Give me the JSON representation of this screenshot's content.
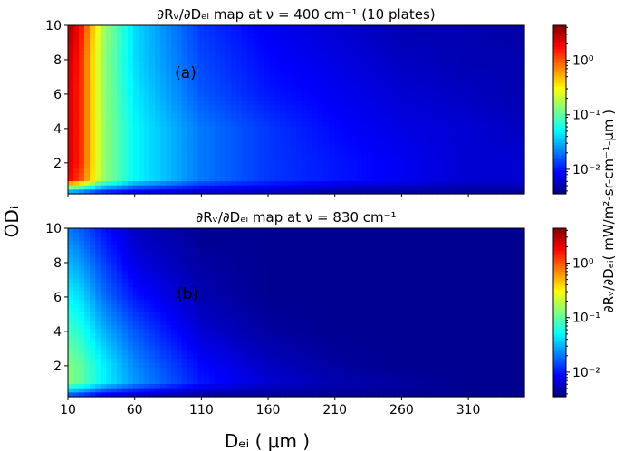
{
  "chart_data": {
    "type": "heatmap",
    "colormap": "jet",
    "color_scale": "log",
    "clim_log10": [
      -2.45,
      0.64
    ],
    "x": [
      10,
      20,
      35,
      60,
      110,
      160,
      210,
      260,
      310,
      350
    ],
    "y": [
      0.2,
      1,
      2,
      4,
      6,
      8,
      10
    ],
    "xlim": [
      10,
      352
    ],
    "ylim": [
      0.2,
      10
    ],
    "xticks": [
      "10",
      "60",
      "110",
      "160",
      "210",
      "260",
      "310"
    ],
    "xtick_values": [
      10,
      60,
      110,
      160,
      210,
      260,
      310
    ],
    "yticks": [
      "2",
      "4",
      "6",
      "8",
      "10"
    ],
    "ytick_values": [
      2,
      4,
      6,
      8,
      10
    ],
    "xlabel": "Dₑᵢ ( μm )",
    "ylabel": "ODᵢ",
    "colorbar": {
      "label": "∂Rᵥ/∂Dₑᵢ( mW/m²-sr-cm⁻¹-μm )",
      "ticks": [
        "10⁰",
        "10⁻¹",
        "10⁻²"
      ],
      "tick_log10": [
        0,
        -1,
        -2
      ]
    },
    "panels": [
      {
        "title": "∂Rᵥ/∂Dₑᵢ map at ν = 400 cm⁻¹ (10 plates)",
        "annotation": "(a)",
        "log10_values": [
          [
            -1.8,
            -1.9,
            -2.1,
            -2.2,
            -2.3,
            -2.3,
            -2.4,
            -2.4,
            -2.4,
            -2.4
          ],
          [
            0.3,
            0.0,
            -0.8,
            -1.3,
            -1.7,
            -1.9,
            -2.0,
            -2.1,
            -2.2,
            -2.2
          ],
          [
            0.4,
            0.1,
            -0.8,
            -1.3,
            -1.7,
            -1.9,
            -2.0,
            -2.1,
            -2.2,
            -2.2
          ],
          [
            0.4,
            0.1,
            -0.8,
            -1.3,
            -1.7,
            -1.9,
            -2.05,
            -2.15,
            -2.2,
            -2.25
          ],
          [
            0.4,
            0.1,
            -0.8,
            -1.35,
            -1.8,
            -2.0,
            -2.1,
            -2.2,
            -2.25,
            -2.3
          ],
          [
            0.45,
            0.1,
            -0.8,
            -1.4,
            -1.85,
            -2.05,
            -2.15,
            -2.25,
            -2.3,
            -2.3
          ],
          [
            0.55,
            0.2,
            -0.75,
            -1.4,
            -1.9,
            -2.1,
            -2.2,
            -2.3,
            -2.3,
            -2.35
          ]
        ]
      },
      {
        "title": "∂Rᵥ/∂Dₑᵢ map at ν = 830 cm⁻¹",
        "annotation": "(b)",
        "log10_values": [
          [
            -1.9,
            -2.0,
            -2.2,
            -2.3,
            -2.4,
            -2.4,
            -2.4,
            -2.4,
            -2.4,
            -2.4
          ],
          [
            -0.9,
            -1.0,
            -1.3,
            -1.6,
            -2.0,
            -2.2,
            -2.3,
            -2.35,
            -2.4,
            -2.4
          ],
          [
            -0.9,
            -1.0,
            -1.3,
            -1.65,
            -2.05,
            -2.25,
            -2.35,
            -2.4,
            -2.4,
            -2.4
          ],
          [
            -1.1,
            -1.2,
            -1.5,
            -1.8,
            -2.2,
            -2.35,
            -2.4,
            -2.4,
            -2.4,
            -2.4
          ],
          [
            -1.3,
            -1.4,
            -1.7,
            -2.0,
            -2.3,
            -2.4,
            -2.4,
            -2.4,
            -2.4,
            -2.4
          ],
          [
            -1.5,
            -1.6,
            -1.85,
            -2.15,
            -2.35,
            -2.4,
            -2.4,
            -2.4,
            -2.4,
            -2.4
          ],
          [
            -1.7,
            -1.8,
            -2.0,
            -2.25,
            -2.4,
            -2.4,
            -2.4,
            -2.4,
            -2.4,
            -2.4
          ]
        ]
      }
    ]
  }
}
